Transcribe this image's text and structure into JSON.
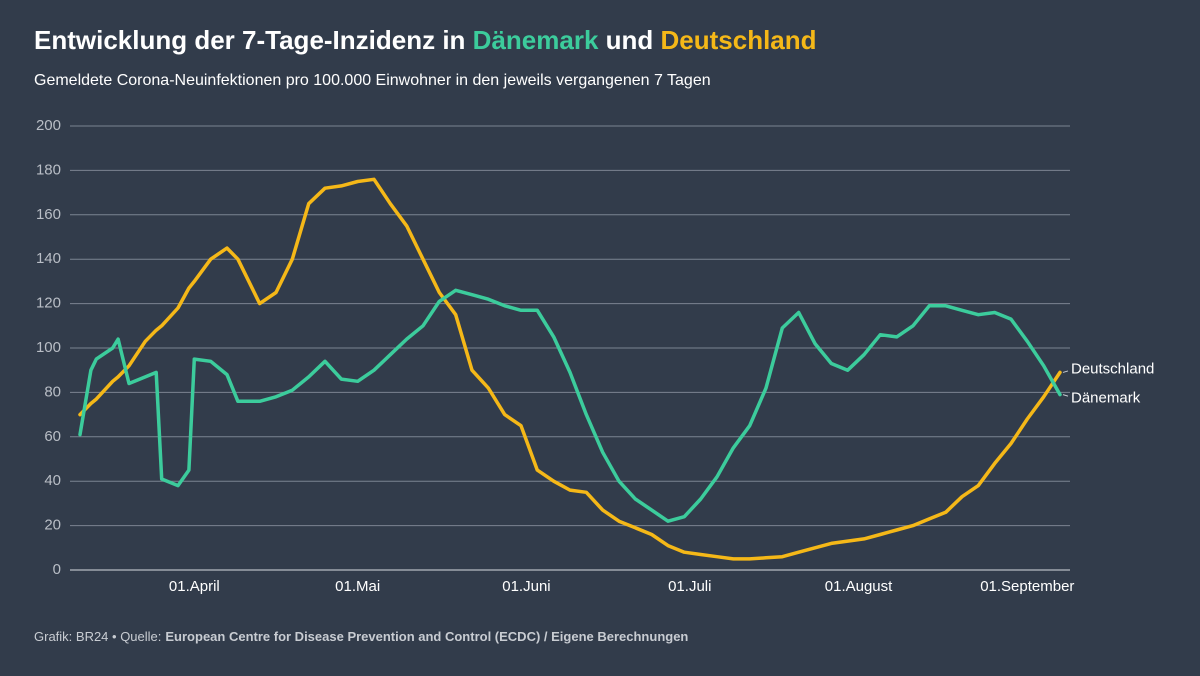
{
  "chart_data": {
    "type": "line",
    "title_parts": [
      "Entwicklung der 7-Tage-Inzidenz in ",
      "Dänemark",
      " und ",
      "Deutschland"
    ],
    "subtitle": "Gemeldete Corona-Neuinfektionen pro 100.000 Einwohner in den jeweils vergangenen 7 Tagen",
    "source_label": "Grafik: BR24 • Quelle:",
    "source": "European Centre for Disease Prevention and Control (ECDC) / Eigene Berechnungen",
    "x": [
      "11.03",
      "13.03",
      "14.03",
      "17.03",
      "18.03",
      "20.03",
      "23.03",
      "25.03",
      "26.03",
      "29.03",
      "31.03",
      "01.04",
      "04.04",
      "07.04",
      "09.04",
      "13.04",
      "16.04",
      "19.04",
      "22.04",
      "25.04",
      "28.04",
      "01.05",
      "04.05",
      "07.05",
      "10.05",
      "13.05",
      "16.05",
      "19.05",
      "22.05",
      "25.05",
      "28.05",
      "31.05",
      "03.06",
      "06.06",
      "09.06",
      "12.06",
      "15.06",
      "18.06",
      "21.06",
      "24.06",
      "27.06",
      "30.06",
      "03.07",
      "06.07",
      "09.07",
      "12.07",
      "15.07",
      "18.07",
      "21.07",
      "24.07",
      "27.07",
      "30.07",
      "02.08",
      "05.08",
      "08.08",
      "11.08",
      "14.08",
      "17.08",
      "20.08",
      "23.08",
      "26.08",
      "29.08",
      "01.09",
      "04.09",
      "07.09"
    ],
    "series": [
      {
        "name": "Deutschland",
        "color": "#f5b818",
        "values": [
          70,
          75,
          77,
          85,
          87,
          92,
          103,
          108,
          110,
          118,
          127,
          130,
          140,
          145,
          140,
          120,
          125,
          140,
          165,
          172,
          173,
          175,
          176,
          165,
          155,
          140,
          125,
          115,
          90,
          82,
          70,
          65,
          45,
          40,
          36,
          35,
          27,
          22,
          19,
          16,
          11,
          8,
          7,
          6,
          5,
          5,
          5.5,
          6,
          8,
          10,
          12,
          13,
          14,
          16,
          18,
          20,
          23,
          26,
          33,
          38,
          48,
          57,
          68,
          78,
          89
        ]
      },
      {
        "name": "Dänemark",
        "color": "#3ccc9c",
        "values": [
          61,
          90,
          95,
          100,
          104,
          84,
          87,
          89,
          41,
          38,
          45,
          95,
          94,
          88,
          76,
          76,
          78,
          81,
          87,
          94,
          86,
          85,
          90,
          97,
          104,
          110,
          121,
          126,
          124,
          122,
          119,
          117,
          117,
          105,
          89,
          70,
          53,
          40,
          32,
          27,
          22,
          24,
          32,
          42,
          55,
          65,
          82,
          109,
          116,
          102,
          93,
          90,
          97,
          106,
          105,
          110,
          119,
          119,
          117,
          115,
          116,
          113,
          103,
          92,
          79
        ]
      }
    ],
    "xlim": [
      "11.03",
      "07.09"
    ],
    "xticks": [
      {
        "value": "01.04",
        "label": "01.April"
      },
      {
        "value": "01.05",
        "label": "01.Mai"
      },
      {
        "value": "01.06",
        "label": "01.Juni"
      },
      {
        "value": "01.07",
        "label": "01.Juli"
      },
      {
        "value": "01.08",
        "label": "01.August"
      },
      {
        "value": "01.09",
        "label": "01.September"
      }
    ],
    "ylim": [
      0,
      200
    ],
    "yticks": [
      0,
      20,
      40,
      60,
      80,
      100,
      120,
      140,
      160,
      180,
      200
    ],
    "grid": true
  }
}
